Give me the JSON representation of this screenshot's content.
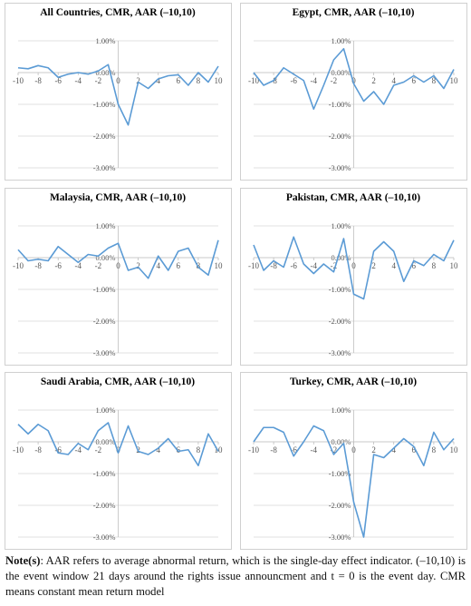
{
  "chart_data": [
    {
      "type": "line",
      "title": "All Countries, CMR, AAR (–10,10)",
      "x": [
        -10,
        -9,
        -8,
        -7,
        -6,
        -5,
        -4,
        -3,
        -2,
        -1,
        0,
        1,
        2,
        3,
        4,
        5,
        6,
        7,
        8,
        9,
        10
      ],
      "series": [
        {
          "color": "#5b9bd5",
          "values": [
            0.15,
            0.12,
            0.22,
            0.15,
            -0.15,
            -0.05,
            0.0,
            -0.05,
            0.05,
            0.25,
            -1.0,
            -1.65,
            -0.3,
            -0.5,
            -0.2,
            -0.1,
            -0.07,
            -0.4,
            0.0,
            -0.3,
            0.2
          ]
        }
      ],
      "xlim": [
        -10,
        10
      ],
      "xticks": [
        -10,
        -8,
        -6,
        -4,
        -2,
        0,
        2,
        4,
        6,
        8,
        10
      ],
      "ylim": [
        -3,
        1
      ],
      "yticks": [
        {
          "value": -3,
          "label": "-3.00%"
        },
        {
          "value": -2,
          "label": "-2.00%"
        },
        {
          "value": -1,
          "label": "-1.00%"
        },
        {
          "value": 0,
          "label": "0.00%"
        },
        {
          "value": 1,
          "label": "1.00%"
        }
      ],
      "grid": true
    },
    {
      "type": "line",
      "title": "Egypt, CMR, AAR (–10,10)",
      "x": [
        -10,
        -9,
        -8,
        -7,
        -6,
        -5,
        -4,
        -3,
        -2,
        -1,
        0,
        1,
        2,
        3,
        4,
        5,
        6,
        7,
        8,
        9,
        10
      ],
      "series": [
        {
          "color": "#5b9bd5",
          "values": [
            0.0,
            -0.4,
            -0.25,
            0.15,
            -0.05,
            -0.25,
            -1.15,
            -0.4,
            0.4,
            0.75,
            -0.35,
            -0.9,
            -0.6,
            -1.0,
            -0.4,
            -0.3,
            -0.1,
            -0.3,
            -0.1,
            -0.5,
            0.1
          ]
        }
      ],
      "xlim": [
        -10,
        10
      ],
      "xticks": [
        -10,
        -8,
        -6,
        -4,
        -2,
        0,
        2,
        4,
        6,
        8,
        10
      ],
      "ylim": [
        -3,
        1
      ],
      "yticks": [
        {
          "value": -3,
          "label": "-3.00%"
        },
        {
          "value": -2,
          "label": "-2.00%"
        },
        {
          "value": -1,
          "label": "-1.00%"
        },
        {
          "value": 0,
          "label": "0.00%"
        },
        {
          "value": 1,
          "label": "1.00%"
        }
      ],
      "grid": true
    },
    {
      "type": "line",
      "title": "Malaysia, CMR, AAR (–10,10)",
      "x": [
        -10,
        -9,
        -8,
        -7,
        -6,
        -5,
        -4,
        -3,
        -2,
        -1,
        0,
        1,
        2,
        3,
        4,
        5,
        6,
        7,
        8,
        9,
        10
      ],
      "series": [
        {
          "color": "#5b9bd5",
          "values": [
            0.25,
            -0.1,
            -0.05,
            -0.1,
            0.35,
            0.1,
            -0.15,
            0.1,
            0.05,
            0.3,
            0.45,
            -0.4,
            -0.3,
            -0.65,
            0.05,
            -0.4,
            0.2,
            0.3,
            -0.3,
            -0.55,
            0.55
          ]
        }
      ],
      "xlim": [
        -10,
        10
      ],
      "xticks": [
        -10,
        -8,
        -6,
        -4,
        -2,
        0,
        2,
        4,
        6,
        8,
        10
      ],
      "ylim": [
        -3,
        1
      ],
      "yticks": [
        {
          "value": -3,
          "label": "-3.00%"
        },
        {
          "value": -2,
          "label": "-2.00%"
        },
        {
          "value": -1,
          "label": "-1.00%"
        },
        {
          "value": 0,
          "label": "0.00%"
        },
        {
          "value": 1,
          "label": "1.00%"
        }
      ],
      "grid": true
    },
    {
      "type": "line",
      "title": "Pakistan, CMR, AAR (–10,10)",
      "x": [
        -10,
        -9,
        -8,
        -7,
        -6,
        -5,
        -4,
        -3,
        -2,
        -1,
        0,
        1,
        2,
        3,
        4,
        5,
        6,
        7,
        8,
        9,
        10
      ],
      "series": [
        {
          "color": "#5b9bd5",
          "values": [
            0.4,
            -0.4,
            -0.1,
            -0.3,
            0.65,
            -0.2,
            -0.5,
            -0.2,
            -0.45,
            0.6,
            -1.15,
            -1.3,
            0.2,
            0.5,
            0.2,
            -0.75,
            -0.1,
            -0.25,
            0.1,
            -0.1,
            0.55
          ]
        }
      ],
      "xlim": [
        -10,
        10
      ],
      "xticks": [
        -10,
        -8,
        -6,
        -4,
        -2,
        0,
        2,
        4,
        6,
        8,
        10
      ],
      "ylim": [
        -3,
        1
      ],
      "yticks": [
        {
          "value": -3,
          "label": "-3.00%"
        },
        {
          "value": -2,
          "label": "-2.00%"
        },
        {
          "value": -1,
          "label": "-1.00%"
        },
        {
          "value": 0,
          "label": "0.00%"
        },
        {
          "value": 1,
          "label": "1.00%"
        }
      ],
      "grid": true
    },
    {
      "type": "line",
      "title": "Saudi Arabia, CMR, AAR (–10,10)",
      "x": [
        -10,
        -9,
        -8,
        -7,
        -6,
        -5,
        -4,
        -3,
        -2,
        -1,
        0,
        1,
        2,
        3,
        4,
        5,
        6,
        7,
        8,
        9,
        10
      ],
      "series": [
        {
          "color": "#5b9bd5",
          "values": [
            0.55,
            0.25,
            0.55,
            0.35,
            -0.35,
            -0.4,
            -0.05,
            -0.25,
            0.35,
            0.6,
            -0.35,
            0.5,
            -0.3,
            -0.4,
            -0.2,
            0.1,
            -0.3,
            -0.25,
            -0.75,
            0.25,
            -0.3
          ]
        }
      ],
      "xlim": [
        -10,
        10
      ],
      "xticks": [
        -10,
        -8,
        -6,
        -4,
        -2,
        0,
        2,
        4,
        6,
        8,
        10
      ],
      "ylim": [
        -3,
        1
      ],
      "yticks": [
        {
          "value": -3,
          "label": "-3.00%"
        },
        {
          "value": -2,
          "label": "-2.00%"
        },
        {
          "value": -1,
          "label": "-1.00%"
        },
        {
          "value": 0,
          "label": "0.00%"
        },
        {
          "value": 1,
          "label": "1.00%"
        }
      ],
      "grid": true
    },
    {
      "type": "line",
      "title": "Turkey, CMR, AAR (–10,10)",
      "x": [
        -10,
        -9,
        -8,
        -7,
        -6,
        -5,
        -4,
        -3,
        -2,
        -1,
        0,
        1,
        2,
        3,
        4,
        5,
        6,
        7,
        8,
        9,
        10
      ],
      "series": [
        {
          "color": "#5b9bd5",
          "values": [
            0.0,
            0.45,
            0.45,
            0.3,
            -0.45,
            0.0,
            0.5,
            0.35,
            -0.4,
            -0.05,
            -1.9,
            -3.0,
            -0.4,
            -0.5,
            -0.2,
            0.1,
            -0.15,
            -0.75,
            0.3,
            -0.25,
            0.1
          ]
        }
      ],
      "xlim": [
        -10,
        10
      ],
      "xticks": [
        -10,
        -8,
        -6,
        -4,
        -2,
        0,
        2,
        4,
        6,
        8,
        10
      ],
      "ylim": [
        -3,
        1
      ],
      "yticks": [
        {
          "value": -3,
          "label": "-3.00%"
        },
        {
          "value": -2,
          "label": "-2.00%"
        },
        {
          "value": -1,
          "label": "-1.00%"
        },
        {
          "value": 0,
          "label": "0.00%"
        },
        {
          "value": 1,
          "label": "1.00%"
        }
      ],
      "grid": true
    }
  ],
  "note": {
    "label": "Note(s)",
    "text": ": AAR refers to average abnormal return, which is the single-day effect indicator. (–10,10) is the event window 21 days around the rights issue announcment and t = 0 is the event day. CMR means constant mean return model"
  }
}
